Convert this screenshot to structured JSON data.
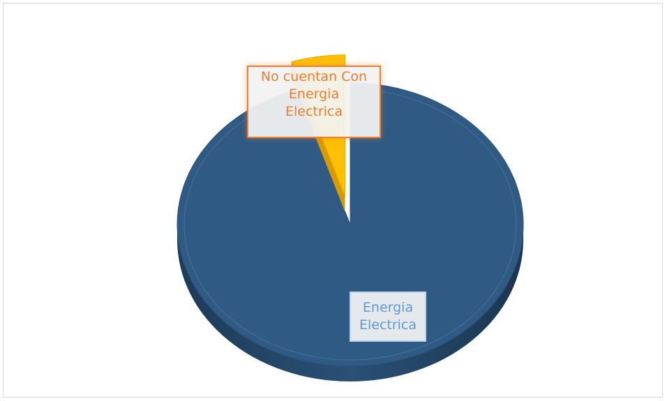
{
  "chart_data": {
    "type": "pie",
    "style": "3d",
    "title": "",
    "slices": [
      {
        "label": "Energia Electrica",
        "value": 95,
        "color": "#2f5a84"
      },
      {
        "label": "No cuentan Con Energia Electrica",
        "value": 5,
        "color": "#ffc000",
        "exploded": true
      }
    ],
    "data_labels": [
      {
        "series": "No cuentan Con Energia Electrica",
        "lines": [
          "No cuentan Con",
          "Energia",
          "Electrica"
        ],
        "color": "#ed7d31"
      },
      {
        "series": "Energia Electrica",
        "lines": [
          "Energia",
          "Electrica"
        ],
        "color": "#5b9bd5"
      }
    ],
    "legend": "none"
  }
}
